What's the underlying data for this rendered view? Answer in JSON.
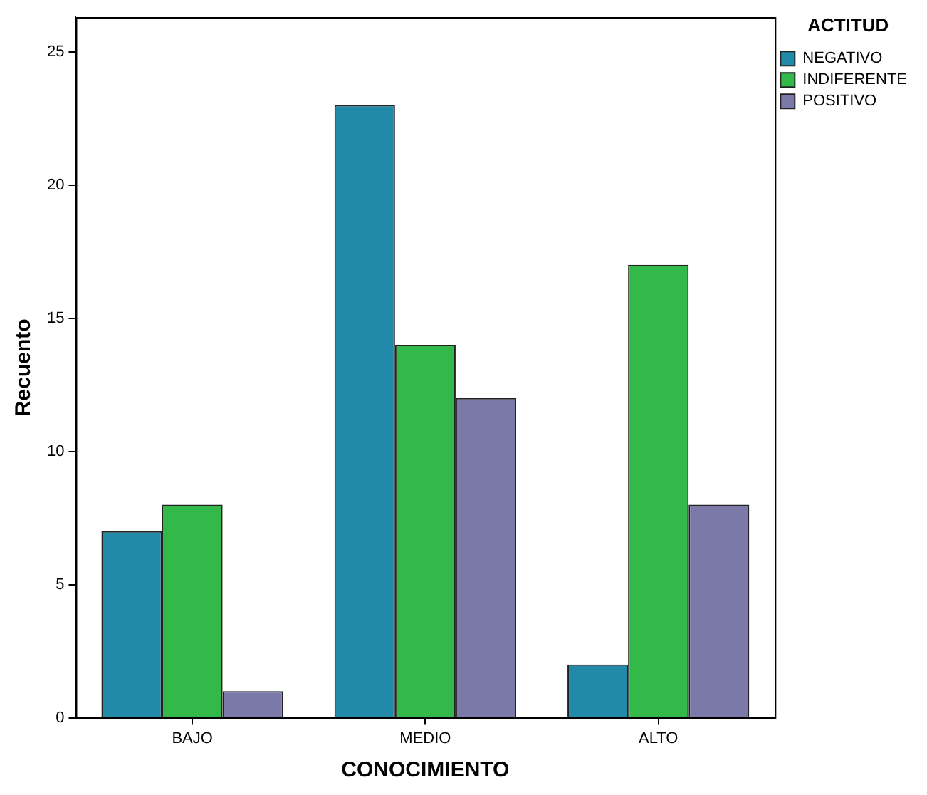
{
  "chart_data": {
    "type": "bar",
    "xlabel": "CONOCIMIENTO",
    "ylabel": "Recuento",
    "legend_title": "ACTITUD",
    "categories": [
      "BAJO",
      "MEDIO",
      "ALTO"
    ],
    "series": [
      {
        "name": "NEGATIVO",
        "color": "#218aa9",
        "values": [
          7,
          23,
          2
        ]
      },
      {
        "name": "INDIFERENTE",
        "color": "#33b84a",
        "values": [
          8,
          14,
          17
        ]
      },
      {
        "name": "POSITIVO",
        "color": "#7a79a8",
        "values": [
          1,
          12,
          8
        ]
      }
    ],
    "ylim": [
      0,
      26.3
    ],
    "yticks": [
      0,
      5,
      10,
      15,
      20,
      25
    ],
    "grid": false,
    "legend": "top right"
  }
}
